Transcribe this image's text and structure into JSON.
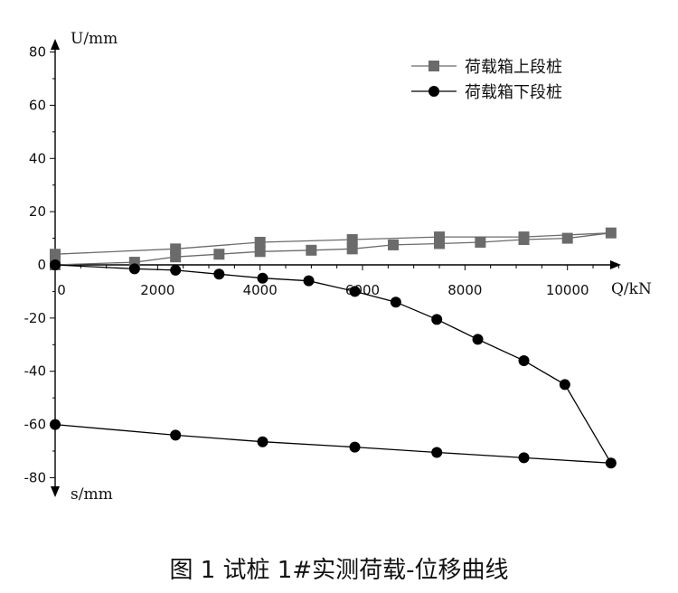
{
  "caption": "图 1  试桩 1#实测荷载-位移曲线",
  "chart_data": {
    "type": "line",
    "xlabel": "Q/kN",
    "ylabel_top": "U/mm",
    "ylabel_bottom": "s/mm",
    "xlim": [
      0,
      11000
    ],
    "ylim": [
      -80,
      80
    ],
    "x_ticks": [
      0,
      2000,
      4000,
      6000,
      8000,
      10000
    ],
    "y_ticks": [
      80,
      60,
      40,
      20,
      0,
      -20,
      -40,
      -60,
      -80
    ],
    "legend_position": "top-right",
    "grid": false,
    "series": [
      {
        "name": "荷载箱上段桩",
        "marker": "square",
        "color": "#6b6b6b",
        "x": [
          0,
          1550,
          2350,
          3200,
          4000,
          5000,
          5800,
          6600,
          7500,
          8300,
          9150,
          10000,
          10850,
          9150,
          7500,
          5800,
          4000,
          2350,
          0
        ],
        "y": [
          0,
          1,
          3,
          4,
          5,
          5.5,
          6,
          7.5,
          8,
          8.5,
          9.5,
          10,
          12,
          10.5,
          10.5,
          9.5,
          8.5,
          6,
          4
        ]
      },
      {
        "name": "荷载箱下段桩",
        "marker": "circle",
        "color": "#000000",
        "x": [
          0,
          1550,
          2350,
          3200,
          4050,
          4950,
          5850,
          6650,
          7450,
          8250,
          9150,
          9950,
          10850,
          9150,
          7450,
          5850,
          4050,
          2350,
          0
        ],
        "y": [
          0,
          -1.5,
          -2,
          -3.5,
          -5,
          -6,
          -10,
          -14,
          -20.5,
          -28,
          -36,
          -45,
          -74.5,
          -72.5,
          -70.5,
          -68.5,
          -66.5,
          -64,
          -60
        ]
      }
    ]
  }
}
